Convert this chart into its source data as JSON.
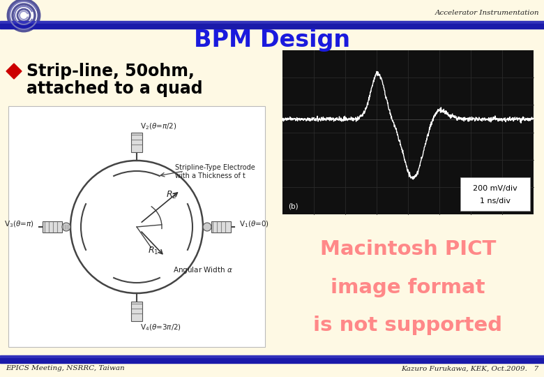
{
  "bg_color": "#FEF9E4",
  "header_bar_color": "#1A1AAA",
  "header_text": "Accelerator Instrumentation",
  "title": "BPM Design",
  "title_color": "#1A1ADD",
  "bullet_diamond_color": "#CC0000",
  "bullet_text_line1": "Strip-line, 50ohm,",
  "bullet_text_line2": "attached to a quad",
  "bullet_color": "#000000",
  "pict_text_line1": "Macintosh PICT",
  "pict_text_line2": "image format",
  "pict_text_line3": "is not supported",
  "pict_text_color": "#FF8888",
  "footer_left": "EPICS Meeting, NSRRC, Taiwan",
  "footer_right": "Kazuro Furukawa, KEK, Oct.2009.   7",
  "footer_color": "#222222",
  "osc_bg": "#101010",
  "osc_grid": "#2A2A2A"
}
